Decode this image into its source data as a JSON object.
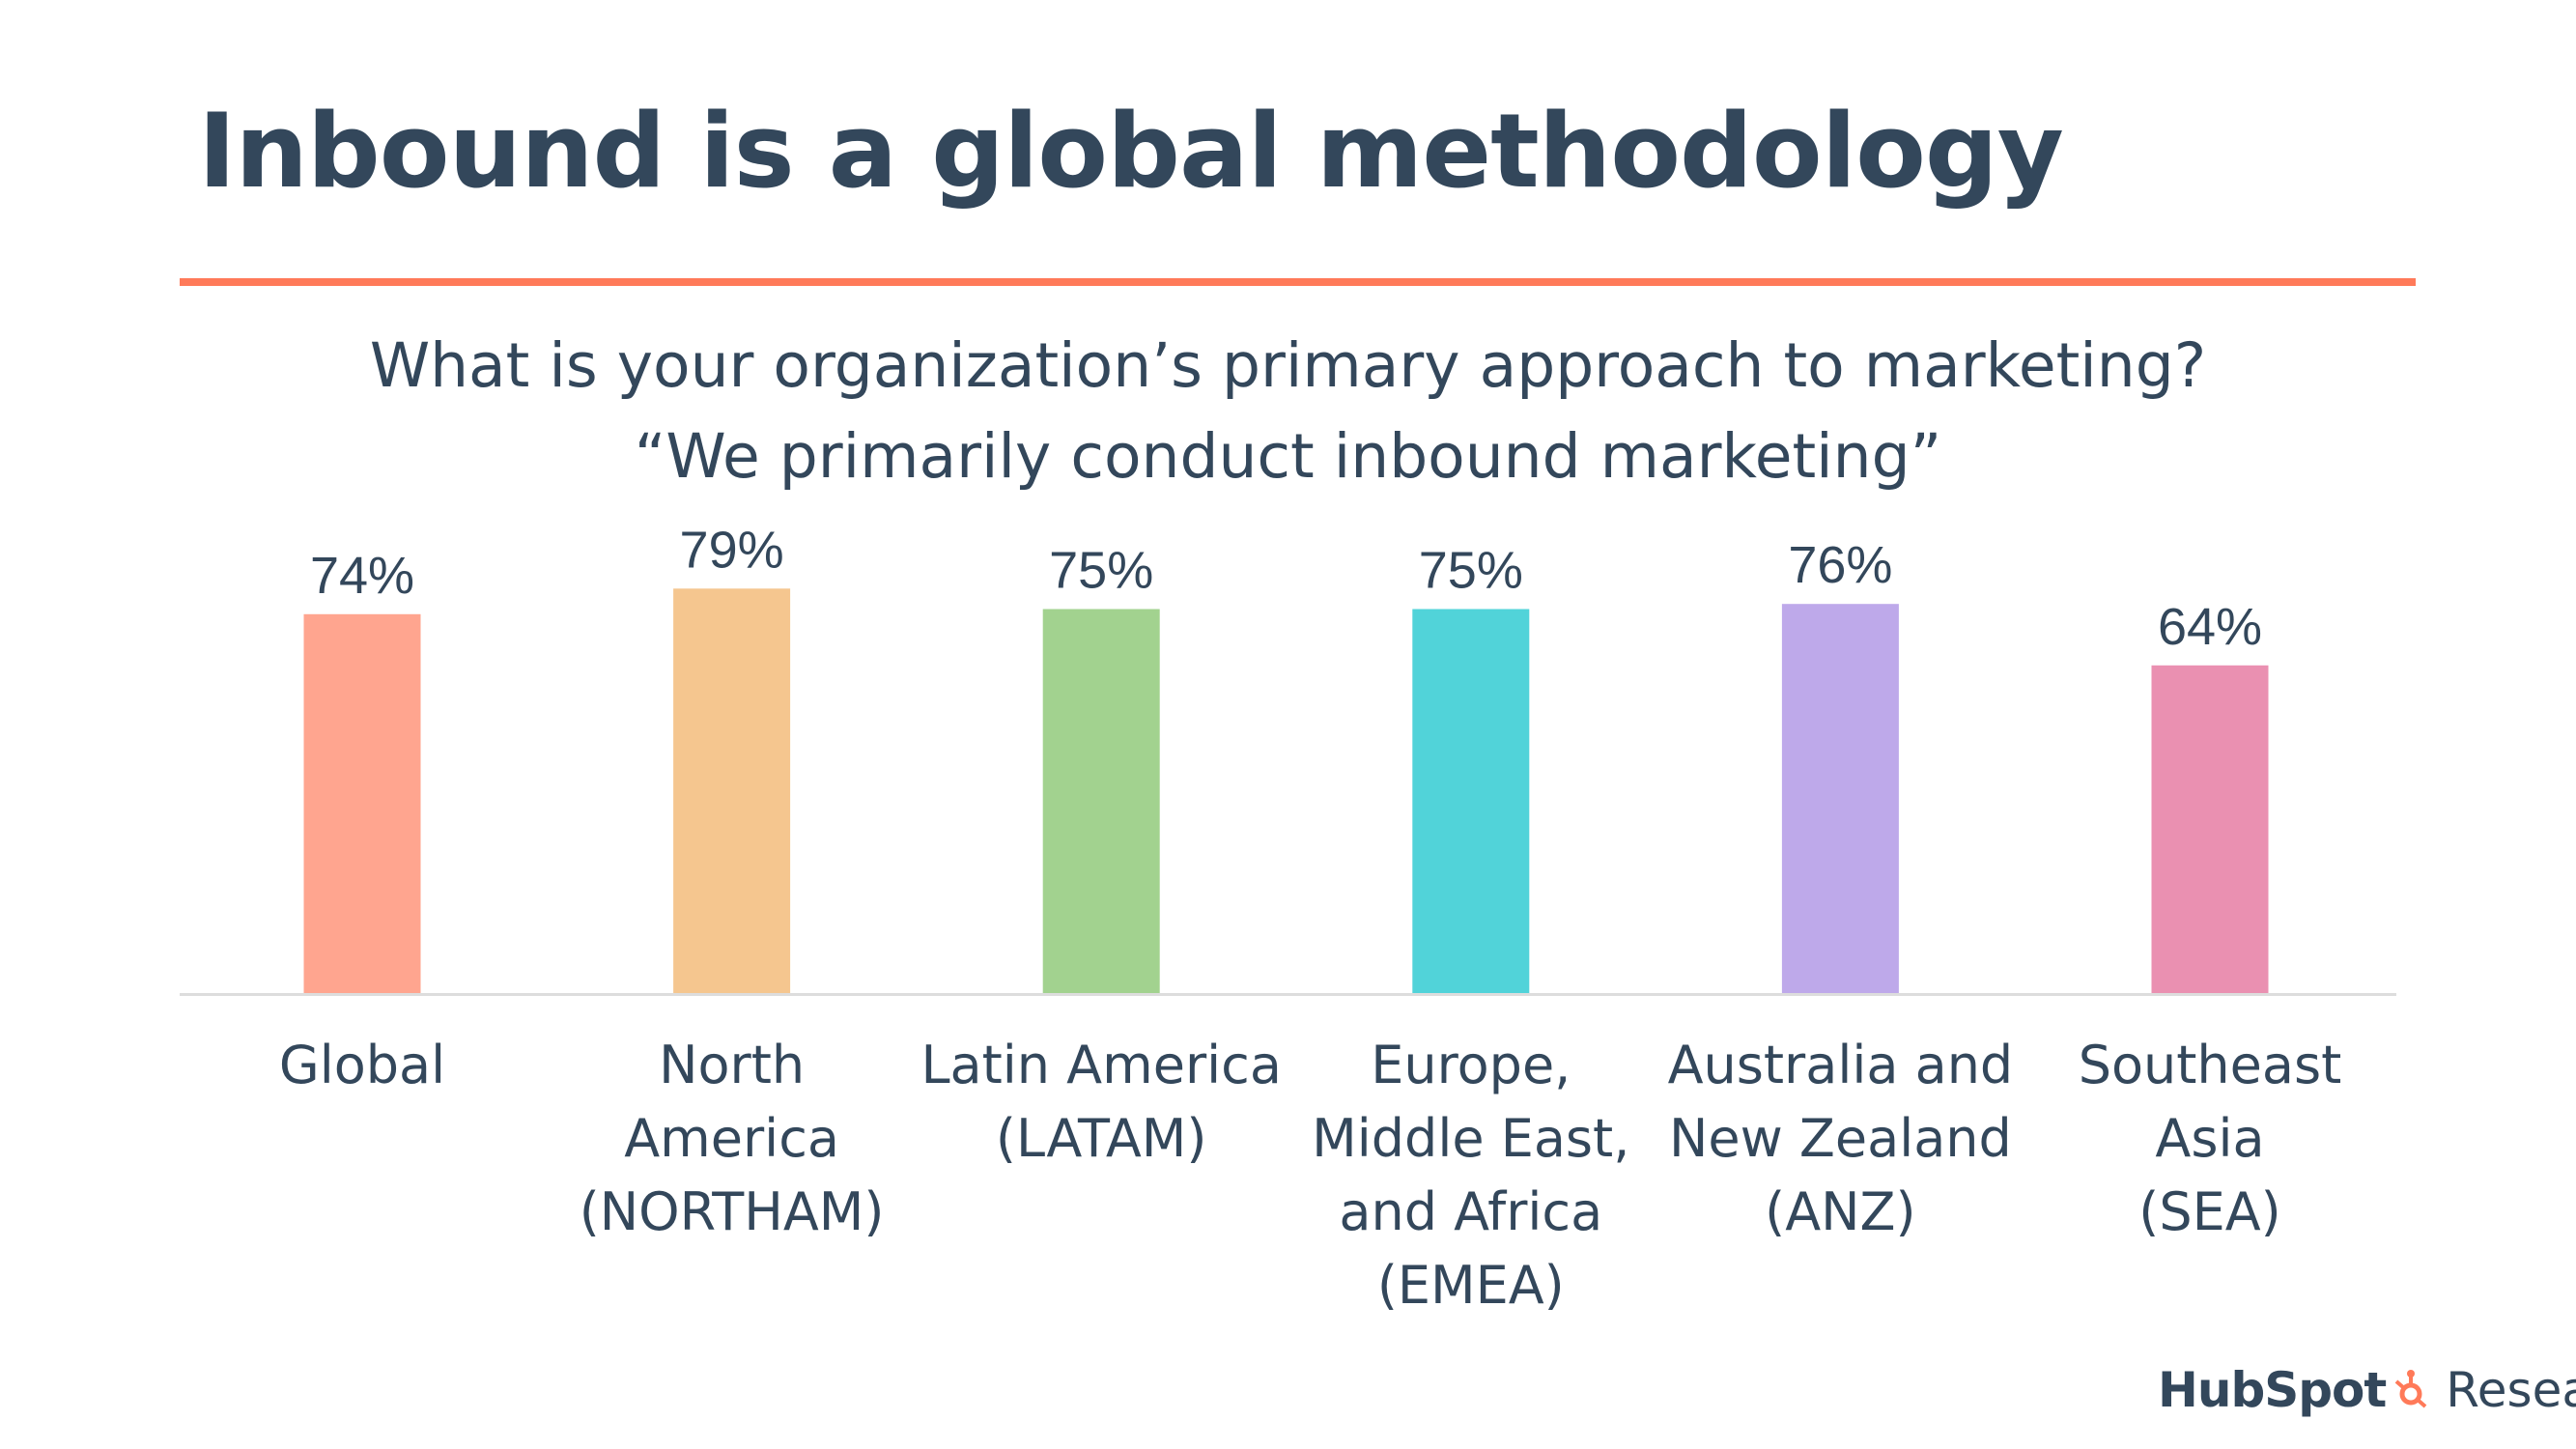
{
  "title": "Inbound is a global methodology",
  "subtitle": [
    "What is your organization’s primary approach to marketing?",
    "“We primarily conduct inbound marketing”"
  ],
  "brand": {
    "name": "HubSpot",
    "suffix": "Research",
    "logo_icon": "sprocket-icon"
  },
  "colors": {
    "title": "#33475b",
    "accent_rule": "#ff7a59",
    "axis": "#dddddd"
  },
  "chart_data": {
    "type": "bar",
    "categories": [
      "Global",
      "North America\n(NORTHAM)",
      "Latin America\n(LATAM)",
      "Europe,\nMiddle East,\nand Africa\n(EMEA)",
      "Australia and\nNew Zealand\n(ANZ)",
      "Southeast Asia\n(SEA)"
    ],
    "values": [
      74,
      79,
      75,
      75,
      76,
      64
    ],
    "data_labels": [
      "74%",
      "79%",
      "75%",
      "75%",
      "76%",
      "64%"
    ],
    "bar_colors": [
      "#ffa58f",
      "#f5c68f",
      "#a2d28f",
      "#51d3d9",
      "#bea9ea",
      "#ea90b1"
    ],
    "ylim": [
      0,
      100
    ],
    "grid": false,
    "legend": "none"
  }
}
